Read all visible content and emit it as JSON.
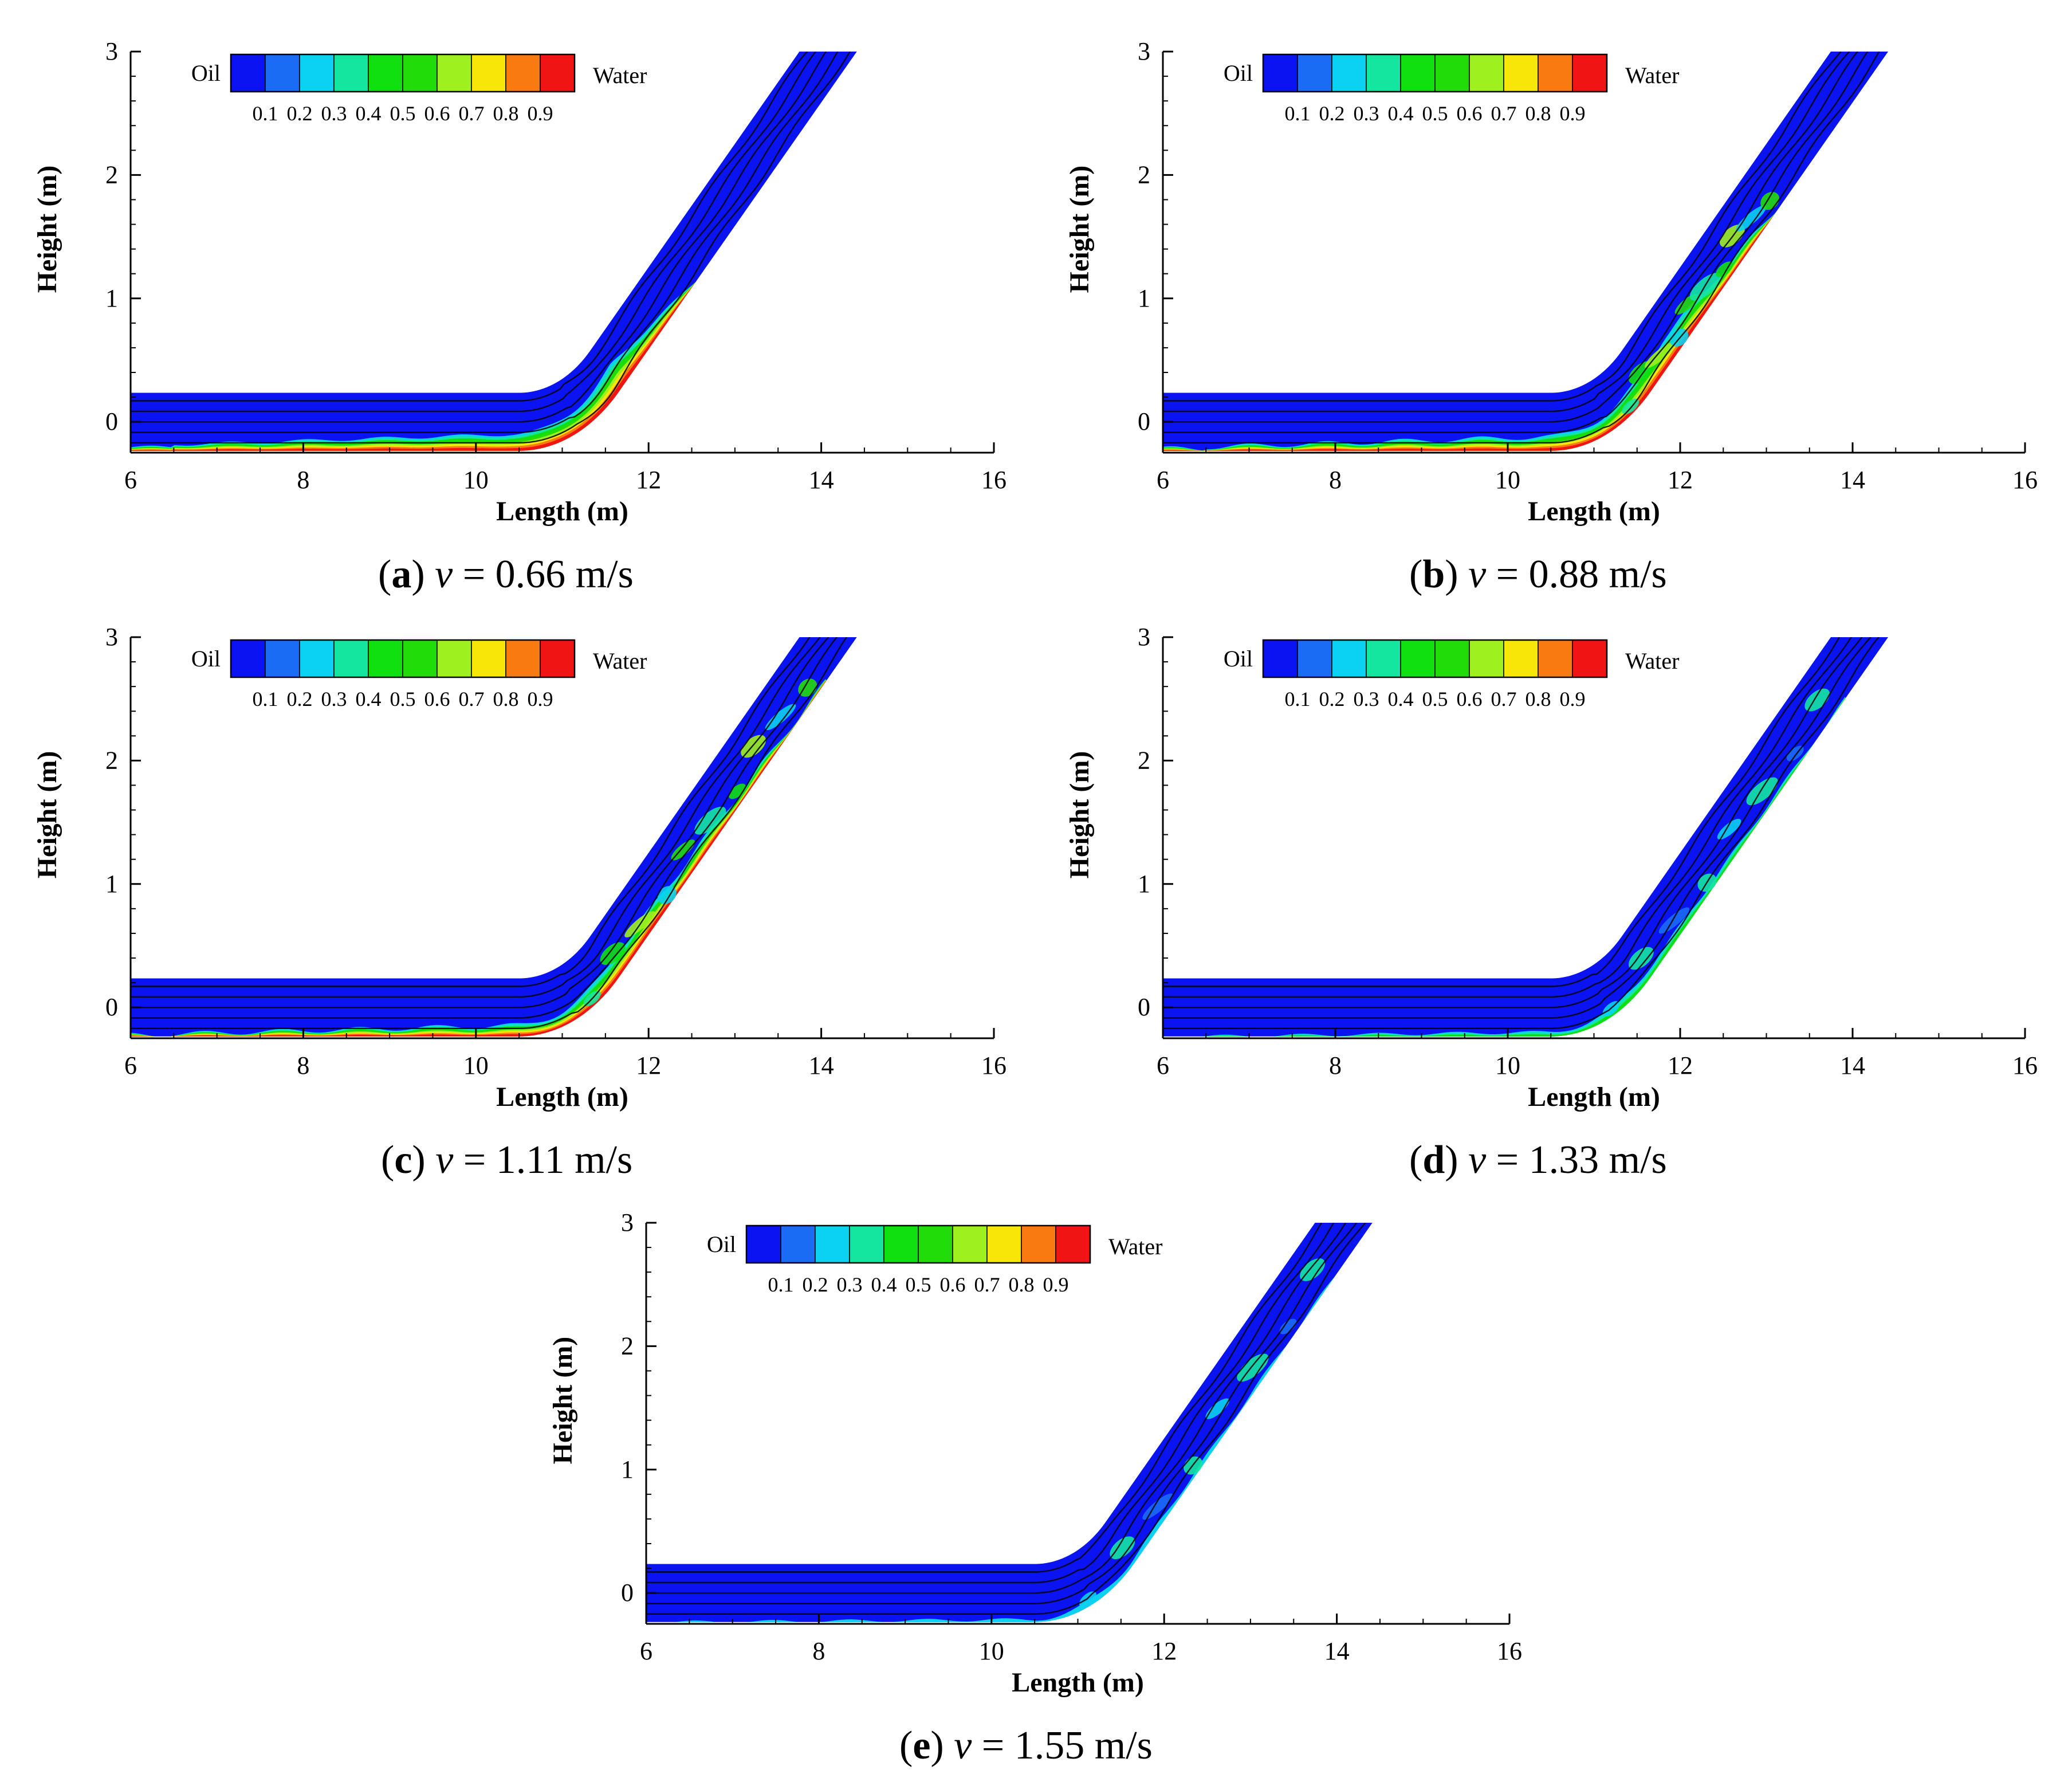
{
  "chart_data": [
    {
      "type": "contour",
      "panel_label": "a",
      "velocity_symbol": "v",
      "velocity_text": "= 0.66 m/s",
      "xlabel": "Length (m)",
      "ylabel": "Height (m)",
      "xlim": [
        6,
        16
      ],
      "ylim": [
        -0.25,
        3
      ],
      "xticks": [
        "6",
        "8",
        "10",
        "12",
        "14",
        "16"
      ],
      "yticks": [
        "0",
        "1",
        "2",
        "3"
      ],
      "legend": {
        "left_label": "Oil",
        "right_label": "Water",
        "levels": [
          "0.1",
          "0.2",
          "0.3",
          "0.4",
          "0.5",
          "0.6",
          "0.7",
          "0.8",
          "0.9"
        ],
        "colors": [
          "#0a14f0",
          "#1a6cf5",
          "#0ad2f0",
          "#14e6a0",
          "#10e010",
          "#22dc0a",
          "#9ef01e",
          "#f8e608",
          "#f87a10",
          "#f01414"
        ]
      },
      "water_layer": {
        "thickness_start": 0.05,
        "thickness_bend": 0.22,
        "bend_end_arc": 1.2,
        "incline_extent_arc": 1.3,
        "color_level": 9,
        "mixing": "moderate"
      }
    },
    {
      "type": "contour",
      "panel_label": "b",
      "velocity_symbol": "v",
      "velocity_text": "= 0.88 m/s",
      "xlabel": "Length (m)",
      "ylabel": "Height (m)",
      "xlim": [
        6,
        16
      ],
      "ylim": [
        -0.25,
        3
      ],
      "xticks": [
        "6",
        "8",
        "10",
        "12",
        "14",
        "16"
      ],
      "yticks": [
        "0",
        "1",
        "2",
        "3"
      ],
      "legend": {
        "left_label": "Oil",
        "right_label": "Water",
        "levels": [
          "0.1",
          "0.2",
          "0.3",
          "0.4",
          "0.5",
          "0.6",
          "0.7",
          "0.8",
          "0.9"
        ],
        "colors": [
          "#0a14f0",
          "#1a6cf5",
          "#0ad2f0",
          "#14e6a0",
          "#10e010",
          "#22dc0a",
          "#9ef01e",
          "#f8e608",
          "#f87a10",
          "#f01414"
        ]
      },
      "water_layer": {
        "thickness_start": 0.03,
        "thickness_bend": 0.2,
        "bend_end_arc": 1.5,
        "incline_extent_arc": 2.2,
        "color_level": 9,
        "mixing": "strong"
      }
    },
    {
      "type": "contour",
      "panel_label": "c",
      "velocity_symbol": "v",
      "velocity_text": "= 1.11 m/s",
      "xlabel": "Length (m)",
      "ylabel": "Height (m)",
      "xlim": [
        6,
        16
      ],
      "ylim": [
        -0.25,
        3
      ],
      "xticks": [
        "6",
        "8",
        "10",
        "12",
        "14",
        "16"
      ],
      "yticks": [
        "0",
        "1",
        "2",
        "3"
      ],
      "legend": {
        "left_label": "Oil",
        "right_label": "Water",
        "levels": [
          "0.1",
          "0.2",
          "0.3",
          "0.4",
          "0.5",
          "0.6",
          "0.7",
          "0.8",
          "0.9"
        ],
        "colors": [
          "#0a14f0",
          "#1a6cf5",
          "#0ad2f0",
          "#14e6a0",
          "#10e010",
          "#22dc0a",
          "#9ef01e",
          "#f8e608",
          "#f87a10",
          "#f01414"
        ]
      },
      "water_layer": {
        "thickness_start": 0.02,
        "thickness_bend": 0.16,
        "bend_end_arc": 1.2,
        "incline_extent_arc": 3.4,
        "color_level": 9,
        "mixing": "strong"
      }
    },
    {
      "type": "contour",
      "panel_label": "d",
      "velocity_symbol": "v",
      "velocity_text": "= 1.33 m/s",
      "xlabel": "Length (m)",
      "ylabel": "Height (m)",
      "xlim": [
        6,
        16
      ],
      "ylim": [
        -0.25,
        3
      ],
      "xticks": [
        "6",
        "8",
        "10",
        "12",
        "14",
        "16"
      ],
      "yticks": [
        "0",
        "1",
        "2",
        "3"
      ],
      "legend": {
        "left_label": "Oil",
        "right_label": "Water",
        "levels": [
          "0.1",
          "0.2",
          "0.3",
          "0.4",
          "0.5",
          "0.6",
          "0.7",
          "0.8",
          "0.9"
        ],
        "colors": [
          "#0a14f0",
          "#1a6cf5",
          "#0ad2f0",
          "#14e6a0",
          "#10e010",
          "#22dc0a",
          "#9ef01e",
          "#f8e608",
          "#f87a10",
          "#f01414"
        ]
      },
      "water_layer": {
        "thickness_start": 0.0,
        "thickness_bend": 0.07,
        "bend_end_arc": 0.8,
        "incline_extent_arc": 3.2,
        "color_level": 4,
        "mixing": "dispersed"
      }
    },
    {
      "type": "contour",
      "panel_label": "e",
      "velocity_symbol": "v",
      "velocity_text": "= 1.55 m/s",
      "xlabel": "Length (m)",
      "ylabel": "Height (m)",
      "xlim": [
        6,
        16
      ],
      "ylim": [
        -0.25,
        3
      ],
      "xticks": [
        "6",
        "8",
        "10",
        "12",
        "14",
        "16"
      ],
      "yticks": [
        "0",
        "1",
        "2",
        "3"
      ],
      "legend": {
        "left_label": "Oil",
        "right_label": "Water",
        "levels": [
          "0.1",
          "0.2",
          "0.3",
          "0.4",
          "0.5",
          "0.6",
          "0.7",
          "0.8",
          "0.9"
        ],
        "colors": [
          "#0a14f0",
          "#1a6cf5",
          "#0ad2f0",
          "#14e6a0",
          "#10e010",
          "#22dc0a",
          "#9ef01e",
          "#f8e608",
          "#f87a10",
          "#f01414"
        ]
      },
      "water_layer": {
        "thickness_start": 0.0,
        "thickness_bend": 0.04,
        "bend_end_arc": 0.6,
        "incline_extent_arc": 3.4,
        "color_level": 2,
        "mixing": "dispersed"
      }
    }
  ]
}
